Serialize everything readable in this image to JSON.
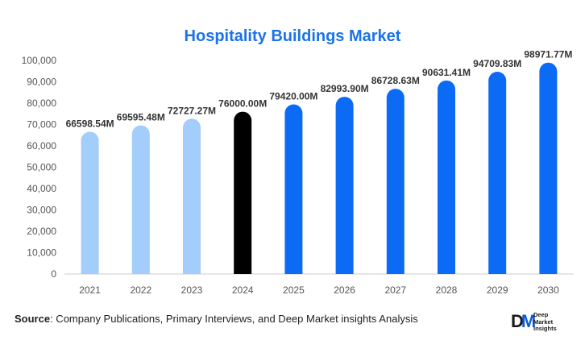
{
  "chart_data": {
    "type": "bar",
    "title": "Hospitality Buildings Market",
    "categories": [
      "2021",
      "2022",
      "2023",
      "2024",
      "2025",
      "2026",
      "2027",
      "2028",
      "2029",
      "2030"
    ],
    "values": [
      66598.54,
      69595.48,
      72727.27,
      76000.0,
      79420.0,
      82993.9,
      86728.63,
      90631.41,
      94709.83,
      98971.77
    ],
    "data_labels": [
      "66598.54M",
      "69595.48M",
      "72727.27M",
      "76000.00M",
      "79420.00M",
      "82993.90M",
      "86728.63M",
      "90631.41M",
      "94709.83M",
      "98971.77M"
    ],
    "bar_colors": [
      "#a3cdfa",
      "#a3cdfa",
      "#a3cdfa",
      "#000000",
      "#0b6bf5",
      "#0b6bf5",
      "#0b6bf5",
      "#0b6bf5",
      "#0b6bf5",
      "#0b6bf5"
    ],
    "ylim": [
      0,
      100000
    ],
    "yticks": [
      0,
      10000,
      20000,
      30000,
      40000,
      50000,
      60000,
      70000,
      80000,
      90000,
      100000
    ],
    "ytick_labels": [
      "0",
      "10,000",
      "20,000",
      "30,000",
      "40,000",
      "50,000",
      "60,000",
      "70,000",
      "80,000",
      "90,000",
      "100,000"
    ],
    "xlabel": "",
    "ylabel": "",
    "grid": false,
    "legend": "none"
  },
  "source": {
    "label": "Source",
    "text": ": Company Publications, Primary Interviews, and Deep Market insights Analysis"
  },
  "logo": {
    "mark_left": "D",
    "mark_right": "M",
    "line1": "Deep",
    "line2": "Market",
    "line3": "Insights"
  },
  "colors": {
    "title": "#1a73e8",
    "axis_text": "#555555",
    "label_text": "#333333"
  }
}
